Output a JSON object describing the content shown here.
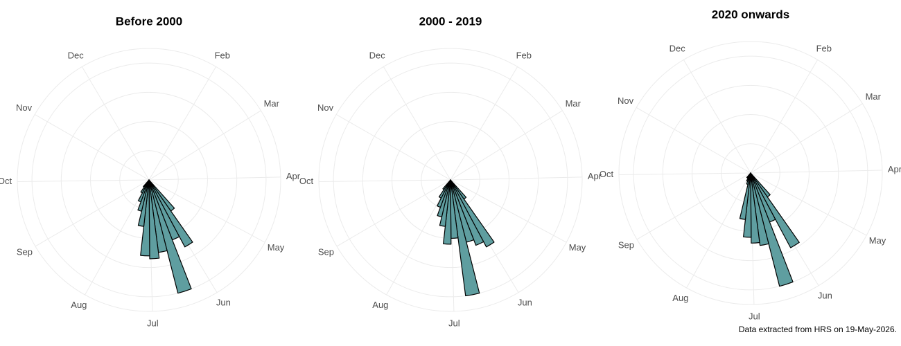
{
  "chart_data": [
    {
      "type": "polar_histogram",
      "title": "Before 2000",
      "bins": [
        140,
        147,
        154,
        161,
        168,
        175,
        182,
        189,
        196,
        203,
        210,
        217,
        224
      ],
      "values": [
        13,
        26,
        22,
        40,
        25,
        27,
        26,
        16,
        11,
        8,
        5,
        3
      ],
      "xlim": [
        0,
        365
      ],
      "ylim": [
        0,
        45
      ],
      "radial_grid": [
        10,
        20,
        30,
        40
      ],
      "xticks": [
        {
          "value": 31,
          "label": "Feb"
        },
        {
          "value": 59,
          "label": "Mar"
        },
        {
          "value": 90,
          "label": "Apr"
        },
        {
          "value": 120,
          "label": "May"
        },
        {
          "value": 151,
          "label": "Jun"
        },
        {
          "value": 181,
          "label": "Jul"
        },
        {
          "value": 212,
          "label": "Aug"
        },
        {
          "value": 243,
          "label": "Sep"
        },
        {
          "value": 273,
          "label": "Oct"
        },
        {
          "value": 304,
          "label": "Nov"
        },
        {
          "value": 334,
          "label": "Dec"
        }
      ],
      "color": "#5f9ea0",
      "grid": true
    },
    {
      "type": "polar_histogram",
      "title": "2000 - 2019",
      "bins": [
        140,
        147,
        154,
        161,
        168,
        175,
        182,
        189,
        196,
        203,
        210,
        217,
        224
      ],
      "values": [
        8,
        26,
        24,
        22,
        40,
        20,
        22,
        16,
        13,
        10,
        7,
        4
      ],
      "xlim": [
        0,
        365
      ],
      "ylim": [
        0,
        45
      ],
      "radial_grid": [
        10,
        20,
        30,
        40
      ],
      "xticks": [
        {
          "value": 31,
          "label": "Feb"
        },
        {
          "value": 59,
          "label": "Mar"
        },
        {
          "value": 90,
          "label": "Apr"
        },
        {
          "value": 120,
          "label": "May"
        },
        {
          "value": 151,
          "label": "Jun"
        },
        {
          "value": 181,
          "label": "Jul"
        },
        {
          "value": 212,
          "label": "Aug"
        },
        {
          "value": 243,
          "label": "Sep"
        },
        {
          "value": 273,
          "label": "Oct"
        },
        {
          "value": 304,
          "label": "Nov"
        },
        {
          "value": 334,
          "label": "Dec"
        }
      ],
      "color": "#5f9ea0",
      "grid": true
    },
    {
      "type": "polar_histogram",
      "title": "2020 onwards",
      "bins": [
        140,
        147,
        154,
        161,
        168,
        175,
        182,
        189,
        196,
        203,
        210,
        217,
        224
      ],
      "values": [
        10,
        29,
        18,
        40,
        25,
        24,
        22,
        16,
        4,
        3,
        2,
        2
      ],
      "xlim": [
        0,
        365
      ],
      "ylim": [
        0,
        45
      ],
      "radial_grid": [
        10,
        20,
        30,
        40
      ],
      "xticks": [
        {
          "value": 31,
          "label": "Feb"
        },
        {
          "value": 59,
          "label": "Mar"
        },
        {
          "value": 90,
          "label": "Apr"
        },
        {
          "value": 120,
          "label": "May"
        },
        {
          "value": 151,
          "label": "Jun"
        },
        {
          "value": 181,
          "label": "Jul"
        },
        {
          "value": 212,
          "label": "Aug"
        },
        {
          "value": 243,
          "label": "Sep"
        },
        {
          "value": 273,
          "label": "Oct"
        },
        {
          "value": 304,
          "label": "Nov"
        },
        {
          "value": 334,
          "label": "Dec"
        }
      ],
      "color": "#5f9ea0",
      "grid": true
    }
  ],
  "caption": "Data extracted from HRS on 19-May-2026."
}
